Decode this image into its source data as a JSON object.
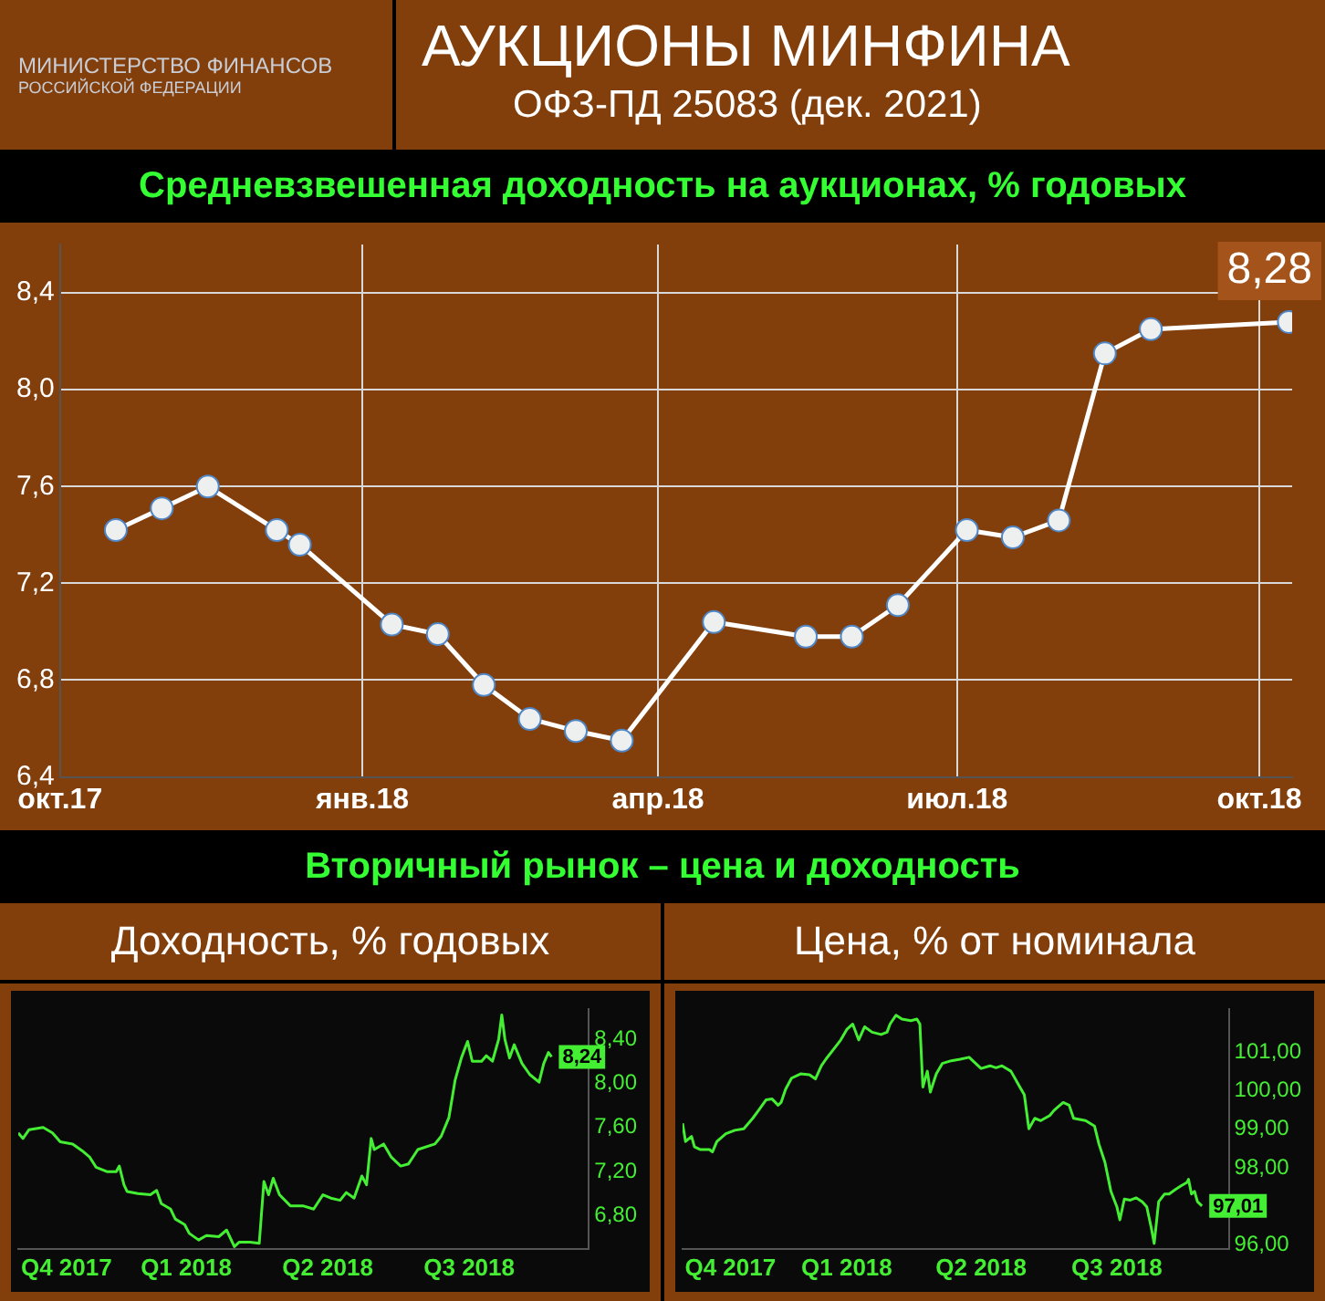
{
  "chart_data": [
    {
      "type": "line",
      "title": "Средневзвешенная доходность на аукционах, % годовых",
      "annotations": [
        "АУКЦИОНЫ МИНФИНА",
        "ОФЗ-ПД 25083 (дек. 2021)",
        "МИНИСТЕРСТВО ФИНАНСОВ",
        "РОССИЙСКОЙ ФЕДЕРАЦИИ"
      ],
      "x": [
        "2017-10-18",
        "2017-11-01",
        "2017-11-15",
        "2017-12-06",
        "2017-12-13",
        "2018-01-10",
        "2018-01-24",
        "2018-02-07",
        "2018-02-21",
        "2018-03-07",
        "2018-03-21",
        "2018-04-18",
        "2018-05-16",
        "2018-05-30",
        "2018-06-13",
        "2018-07-04",
        "2018-07-18",
        "2018-08-01",
        "2018-08-15",
        "2018-08-29",
        "2018-10-10"
      ],
      "series": [
        {
          "color": "#ffffff",
          "values": [
            7.42,
            7.51,
            7.6,
            7.42,
            7.36,
            7.03,
            6.99,
            6.78,
            6.64,
            6.59,
            6.55,
            7.04,
            6.98,
            6.98,
            7.11,
            7.42,
            7.39,
            7.46,
            8.15,
            8.25,
            8.28
          ],
          "value_labels": [
            null,
            null,
            null,
            null,
            null,
            null,
            null,
            null,
            null,
            null,
            null,
            null,
            null,
            null,
            null,
            null,
            null,
            null,
            null,
            null,
            "8,28"
          ]
        }
      ],
      "xlim": [
        "2017-10-01",
        "2018-10-11"
      ],
      "xticks": [
        {
          "value": "2017-10-01",
          "label": "окт.17"
        },
        {
          "value": "2018-01-01",
          "label": "янв.18"
        },
        {
          "value": "2018-04-01",
          "label": "апр.18"
        },
        {
          "value": "2018-07-01",
          "label": "июл.18"
        },
        {
          "value": "2018-10-01",
          "label": "окт.18"
        }
      ],
      "ylim": [
        6.4,
        8.6
      ],
      "yticks": [
        {
          "value": 6.4,
          "label": "6,4"
        },
        {
          "value": 6.8,
          "label": "6,8"
        },
        {
          "value": 7.2,
          "label": "7,2"
        },
        {
          "value": 7.6,
          "label": "7,6"
        },
        {
          "value": 8.0,
          "label": "8,0"
        },
        {
          "value": 8.4,
          "label": "8,4"
        }
      ],
      "grid": true,
      "marker": "circle"
    },
    {
      "type": "line",
      "title": "Доходность, % годовых",
      "annotations": [
        "Вторичный рынок – цена и доходность"
      ],
      "x": [
        "2017-10-29",
        "2017-11-01",
        "2017-11-05",
        "2017-11-14",
        "2017-11-20",
        "2017-11-25",
        "2017-12-03",
        "2017-12-09",
        "2017-12-14",
        "2017-12-18",
        "2017-12-25",
        "2017-12-31",
        "2018-01-02",
        "2018-01-05",
        "2018-01-07",
        "2018-01-14",
        "2018-01-22",
        "2018-01-26",
        "2018-01-29",
        "2018-02-04",
        "2018-02-07",
        "2018-02-13",
        "2018-02-16",
        "2018-02-22",
        "2018-02-27",
        "2018-03-07",
        "2018-03-12",
        "2018-03-17",
        "2018-03-20",
        "2018-03-27",
        "2018-04-02",
        "2018-04-05",
        "2018-04-08",
        "2018-04-11",
        "2018-04-15",
        "2018-04-22",
        "2018-04-30",
        "2018-05-07",
        "2018-05-13",
        "2018-05-18",
        "2018-05-24",
        "2018-05-28",
        "2018-06-02",
        "2018-06-07",
        "2018-06-10",
        "2018-06-13",
        "2018-06-15",
        "2018-06-21",
        "2018-06-26",
        "2018-07-02",
        "2018-07-07",
        "2018-07-13",
        "2018-07-24",
        "2018-07-28",
        "2018-08-02",
        "2018-08-06",
        "2018-08-10",
        "2018-08-14",
        "2018-08-17",
        "2018-08-23",
        "2018-08-26",
        "2018-08-30",
        "2018-09-03",
        "2018-09-05",
        "2018-09-07",
        "2018-09-10",
        "2018-09-13",
        "2018-09-18",
        "2018-09-23",
        "2018-09-29",
        "2018-10-02",
        "2018-10-05",
        "2018-10-07"
      ],
      "series": [
        {
          "color": "#44ee33",
          "axis": "y2",
          "values": [
            7.55,
            7.5,
            7.58,
            7.6,
            7.55,
            7.47,
            7.45,
            7.39,
            7.33,
            7.24,
            7.2,
            7.2,
            7.25,
            7.08,
            7.02,
            7.0,
            6.99,
            7.03,
            6.91,
            6.86,
            6.77,
            6.72,
            6.64,
            6.58,
            6.62,
            6.61,
            6.67,
            6.52,
            6.56,
            6.56,
            6.55,
            7.11,
            6.99,
            7.14,
            6.99,
            6.89,
            6.89,
            6.86,
            6.99,
            6.96,
            6.94,
            7.01,
            6.96,
            7.16,
            7.08,
            7.5,
            7.4,
            7.45,
            7.33,
            7.25,
            7.27,
            7.4,
            7.45,
            7.52,
            7.69,
            8.03,
            8.23,
            8.38,
            8.2,
            8.2,
            8.25,
            8.2,
            8.4,
            8.62,
            8.4,
            8.23,
            8.35,
            8.18,
            8.08,
            8.01,
            8.18,
            8.28,
            8.24
          ],
          "value_labels": [
            null,
            null,
            null,
            null,
            null,
            null,
            null,
            null,
            null,
            null,
            null,
            null,
            null,
            null,
            null,
            null,
            null,
            null,
            null,
            null,
            null,
            null,
            null,
            null,
            null,
            null,
            null,
            null,
            null,
            null,
            null,
            null,
            null,
            null,
            null,
            null,
            null,
            null,
            null,
            null,
            null,
            null,
            null,
            null,
            null,
            null,
            null,
            null,
            null,
            null,
            null,
            null,
            null,
            null,
            null,
            null,
            null,
            null,
            null,
            null,
            null,
            null,
            null,
            null,
            null,
            null,
            null,
            null,
            null,
            null,
            null,
            null,
            "8,24"
          ]
        }
      ],
      "xlim": [
        "2017-10-29",
        "2018-10-31"
      ],
      "xticks": [
        {
          "value": "2017-11-29",
          "label": "Q4 2017"
        },
        {
          "value": "2018-02-14",
          "label": "Q1 2018"
        },
        {
          "value": "2018-05-16",
          "label": "Q2 2018"
        },
        {
          "value": "2018-08-15",
          "label": "Q3 2018"
        }
      ],
      "y2lim": [
        6.5,
        8.67
      ],
      "y2ticks": [
        {
          "value": 6.8,
          "label": "6,80"
        },
        {
          "value": 7.2,
          "label": "7,20"
        },
        {
          "value": 7.6,
          "label": "7,60"
        },
        {
          "value": 8.0,
          "label": "8,00"
        },
        {
          "value": 8.4,
          "label": "8,40"
        }
      ],
      "marker": "none"
    },
    {
      "type": "line",
      "title": "Цена, % от номинала",
      "x": [
        "2017-10-28",
        "2017-10-30",
        "2017-11-03",
        "2017-11-05",
        "2017-11-09",
        "2017-11-15",
        "2017-11-17",
        "2017-11-20",
        "2017-11-26",
        "2017-12-02",
        "2017-12-08",
        "2017-12-14",
        "2017-12-18",
        "2017-12-23",
        "2017-12-27",
        "2017-12-31",
        "2018-01-02",
        "2018-01-05",
        "2018-01-09",
        "2018-01-15",
        "2018-01-21",
        "2018-01-25",
        "2018-01-29",
        "2018-02-01",
        "2018-02-07",
        "2018-02-11",
        "2018-02-15",
        "2018-02-19",
        "2018-02-23",
        "2018-02-27",
        "2018-03-04",
        "2018-03-10",
        "2018-03-14",
        "2018-03-16",
        "2018-03-20",
        "2018-03-24",
        "2018-03-30",
        "2018-04-03",
        "2018-04-05",
        "2018-04-07",
        "2018-04-10",
        "2018-04-12",
        "2018-04-16",
        "2018-04-20",
        "2018-04-26",
        "2018-05-02",
        "2018-05-08",
        "2018-05-16",
        "2018-05-22",
        "2018-05-26",
        "2018-05-30",
        "2018-06-05",
        "2018-06-11",
        "2018-06-14",
        "2018-06-17",
        "2018-06-21",
        "2018-06-25",
        "2018-07-01",
        "2018-07-04",
        "2018-07-10",
        "2018-07-14",
        "2018-07-17",
        "2018-07-25",
        "2018-07-31",
        "2018-08-03",
        "2018-08-07",
        "2018-08-11",
        "2018-08-15",
        "2018-08-17",
        "2018-08-20",
        "2018-08-24",
        "2018-08-28",
        "2018-09-01",
        "2018-09-04",
        "2018-09-07",
        "2018-09-09",
        "2018-09-12",
        "2018-09-16",
        "2018-09-19",
        "2018-09-23",
        "2018-09-27",
        "2018-10-01",
        "2018-10-02",
        "2018-10-04",
        "2018-10-06",
        "2018-10-08",
        "2018-10-11"
      ],
      "series": [
        {
          "color": "#44ee33",
          "axis": "y2",
          "values": [
            99.15,
            98.68,
            98.81,
            98.54,
            98.47,
            98.47,
            98.41,
            98.68,
            98.88,
            98.97,
            99.01,
            99.28,
            99.49,
            99.76,
            99.78,
            99.62,
            99.69,
            100.03,
            100.32,
            100.43,
            100.41,
            100.3,
            100.64,
            100.81,
            101.11,
            101.31,
            101.58,
            101.72,
            101.31,
            101.65,
            101.51,
            101.45,
            101.51,
            101.72,
            101.95,
            101.85,
            101.81,
            101.85,
            101.72,
            100.09,
            100.5,
            99.96,
            100.43,
            100.7,
            100.77,
            100.81,
            100.86,
            100.57,
            100.64,
            100.59,
            100.64,
            100.5,
            100.09,
            99.89,
            99.01,
            99.28,
            99.22,
            99.35,
            99.49,
            99.69,
            99.62,
            99.28,
            99.22,
            99.08,
            98.61,
            98.14,
            97.39,
            96.99,
            96.65,
            97.19,
            97.16,
            97.22,
            97.12,
            96.99,
            96.45,
            96.04,
            97.12,
            97.32,
            97.32,
            97.43,
            97.53,
            97.62,
            97.7,
            97.32,
            97.39,
            97.12,
            97.01
          ],
          "value_labels": [
            null,
            null,
            null,
            null,
            null,
            null,
            null,
            null,
            null,
            null,
            null,
            null,
            null,
            null,
            null,
            null,
            null,
            null,
            null,
            null,
            null,
            null,
            null,
            null,
            null,
            null,
            null,
            null,
            null,
            null,
            null,
            null,
            null,
            null,
            null,
            null,
            null,
            null,
            null,
            null,
            null,
            null,
            null,
            null,
            null,
            null,
            null,
            null,
            null,
            null,
            null,
            null,
            null,
            null,
            null,
            null,
            null,
            null,
            null,
            null,
            null,
            null,
            null,
            null,
            null,
            null,
            null,
            null,
            null,
            null,
            null,
            null,
            null,
            null,
            null,
            null,
            null,
            null,
            null,
            null,
            null,
            null,
            null,
            null,
            null,
            null,
            "97,01"
          ]
        }
      ],
      "xlim": [
        "2017-10-28",
        "2018-10-29"
      ],
      "xticks": [
        {
          "value": "2017-11-29",
          "label": "Q4 2017"
        },
        {
          "value": "2018-02-15",
          "label": "Q1 2018"
        },
        {
          "value": "2018-05-16",
          "label": "Q2 2018"
        },
        {
          "value": "2018-08-15",
          "label": "Q3 2018"
        }
      ],
      "y2lim": [
        95.9,
        102.1
      ],
      "y2ticks": [
        {
          "value": 96,
          "label": "96,00"
        },
        {
          "value": 98,
          "label": "98,00"
        },
        {
          "value": 99,
          "label": "99,00"
        },
        {
          "value": 100,
          "label": "100,00"
        },
        {
          "value": 101,
          "label": "101,00"
        }
      ],
      "marker": "none"
    }
  ]
}
